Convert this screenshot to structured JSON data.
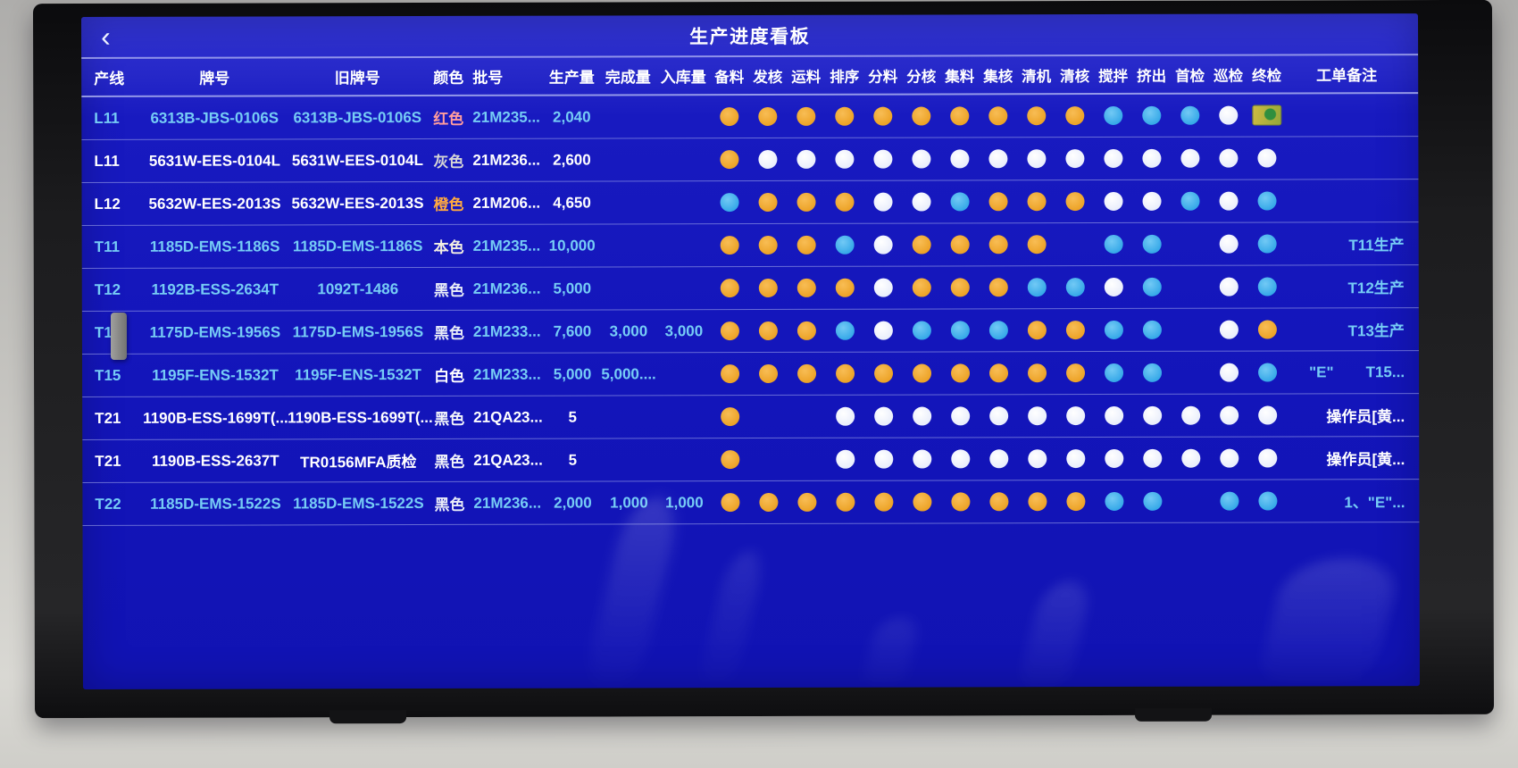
{
  "screen": {
    "title": "生产进度看板",
    "back_icon": "‹"
  },
  "table": {
    "columns": [
      "产线",
      "牌号",
      "旧牌号",
      "颜色",
      "批号",
      "生产量",
      "完成量",
      "入库量"
    ],
    "process_columns": [
      "备料",
      "发核",
      "运料",
      "排序",
      "分料",
      "分核",
      "集料",
      "集核",
      "清机",
      "清核",
      "搅拌",
      "挤出",
      "首检",
      "巡检",
      "终检"
    ],
    "remark_column": "工单备注",
    "dot_colors": {
      "O": "#eca226",
      "B": "#35a8e8",
      "W": "#f2f5ff"
    },
    "rows": [
      {
        "line": "L11",
        "brand": "6313B-JBS-0106S",
        "old_brand": "6313B-JBS-0106S",
        "color": "红色",
        "color_hex": "#ff9d9d",
        "batch": "21M235...",
        "produced": "2,040",
        "completed": "",
        "stored": "",
        "dots": "OOOOOOOOOOBBBWI",
        "remark": "",
        "remark_extra": "",
        "tone": "cyan"
      },
      {
        "line": "L11",
        "brand": "5631W-EES-0104L",
        "old_brand": "5631W-EES-0104L",
        "color": "灰色",
        "color_hex": "#d5d5d5",
        "batch": "21M236...",
        "produced": "2,600",
        "completed": "",
        "stored": "",
        "dots": "OWWWWWWWWWWWWWW",
        "remark": "",
        "remark_extra": "",
        "tone": "white"
      },
      {
        "line": "L12",
        "brand": "5632W-EES-2013S",
        "old_brand": "5632W-EES-2013S",
        "color": "橙色",
        "color_hex": "#ffa940",
        "batch": "21M206...",
        "produced": "4,650",
        "completed": "",
        "stored": "",
        "dots": "BOOOWWBOOOWWBWB",
        "remark": "",
        "remark_extra": "",
        "tone": "white"
      },
      {
        "line": "T11",
        "brand": "1185D-EMS-1186S",
        "old_brand": "1185D-EMS-1186S",
        "color": "本色",
        "color_hex": "#f2eee2",
        "batch": "21M235...",
        "produced": "10,000",
        "completed": "",
        "stored": "",
        "dots": "OOOBWOOOONBBNWB",
        "remark": "T11生产",
        "remark_extra": "",
        "tone": "cyan"
      },
      {
        "line": "T12",
        "brand": "1192B-ESS-2634T",
        "old_brand": "1092T-1486",
        "color": "黑色",
        "color_hex": "#e9edf8",
        "batch": "21M236...",
        "produced": "5,000",
        "completed": "",
        "stored": "",
        "dots": "OOOOWOOOBBWBNWB",
        "remark": "T12生产",
        "remark_extra": "",
        "tone": "cyan"
      },
      {
        "line": "T13",
        "brand": "1175D-EMS-1956S",
        "old_brand": "1175D-EMS-1956S",
        "color": "黑色",
        "color_hex": "#e9edf8",
        "batch": "21M233...",
        "produced": "7,600",
        "completed": "3,000",
        "stored": "3,000",
        "dots": "OOOBWBBBOOBBNWO",
        "remark": "T13生产",
        "remark_extra": "",
        "tone": "cyan"
      },
      {
        "line": "T15",
        "brand": "1195F-ENS-1532T",
        "old_brand": "1195F-ENS-1532T",
        "color": "白色",
        "color_hex": "#ffffff",
        "batch": "21M233...",
        "produced": "5,000",
        "completed": "5,000....",
        "stored": "",
        "dots": "OOOOOOOOOOBBNWB",
        "remark": "\"E\"",
        "remark_extra": "T15...",
        "tone": "cyan"
      },
      {
        "line": "T21",
        "brand": "1190B-ESS-1699T(...",
        "old_brand": "1190B-ESS-1699T(...",
        "color": "黑色",
        "color_hex": "#f2f4fa",
        "batch": "21QA23...",
        "produced": "5",
        "completed": "",
        "stored": "",
        "dots": "ONNWWWWWWWWWWWW",
        "remark": "操作员[黄...",
        "remark_extra": "",
        "tone": "white"
      },
      {
        "line": "T21",
        "brand": "1190B-ESS-2637T",
        "old_brand": "TR0156MFA质检",
        "color": "黑色",
        "color_hex": "#f2f4fa",
        "batch": "21QA23...",
        "produced": "5",
        "completed": "",
        "stored": "",
        "dots": "ONNWWWWWWWWWWWW",
        "remark": "操作员[黄...",
        "remark_extra": "",
        "tone": "white"
      },
      {
        "line": "T22",
        "brand": "1185D-EMS-1522S",
        "old_brand": "1185D-EMS-1522S",
        "color": "黑色",
        "color_hex": "#e9edf8",
        "batch": "21M236...",
        "produced": "2,000",
        "completed": "1,000",
        "stored": "1,000",
        "dots": "OOOOOOOOOOBBNBB",
        "remark": "1、\"E\"...",
        "remark_extra": "",
        "tone": "cyan"
      }
    ]
  }
}
